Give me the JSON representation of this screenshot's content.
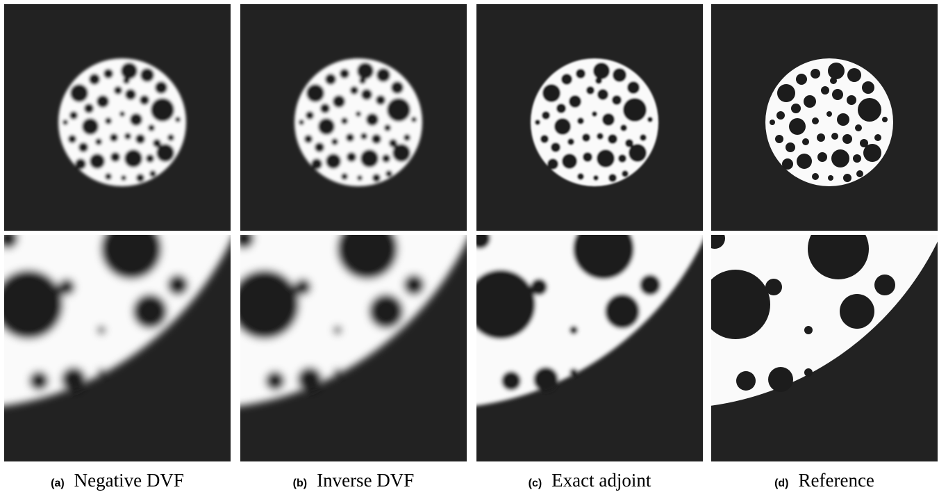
{
  "panels": [
    {
      "label": "(a)",
      "caption": "Negative DVF"
    },
    {
      "label": "(b)",
      "caption": "Inverse DVF"
    },
    {
      "label": "(c)",
      "caption": "Exact adjoint"
    },
    {
      "label": "(d)",
      "caption": "Reference"
    }
  ]
}
